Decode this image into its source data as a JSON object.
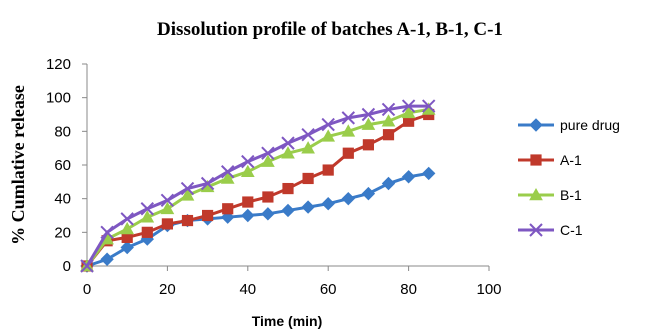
{
  "chart_data": {
    "type": "line",
    "title": "Dissolution profile of batches A-1, B-1, C-1",
    "xlabel": "Time (min)",
    "ylabel": "% Cumlative  release",
    "xlim": [
      0,
      100
    ],
    "ylim": [
      0,
      120
    ],
    "xticks": [
      0,
      20,
      40,
      60,
      80,
      100
    ],
    "yticks": [
      0,
      20,
      40,
      60,
      80,
      100,
      120
    ],
    "grid": false,
    "legend_position": "right",
    "series": [
      {
        "name": "pure drug",
        "color": "#3A7BC8",
        "marker": "diamond",
        "points": [
          [
            0,
            0
          ],
          [
            5,
            4
          ],
          [
            10,
            11
          ],
          [
            15,
            16
          ],
          [
            20,
            24
          ],
          [
            25,
            27
          ],
          [
            30,
            28
          ],
          [
            35,
            29
          ],
          [
            40,
            30
          ],
          [
            45,
            31
          ],
          [
            50,
            33
          ],
          [
            55,
            35
          ],
          [
            60,
            37
          ],
          [
            65,
            40
          ],
          [
            70,
            43
          ],
          [
            75,
            49
          ],
          [
            80,
            53
          ],
          [
            85,
            55
          ]
        ]
      },
      {
        "name": "A-1",
        "color": "#C0392B",
        "marker": "square",
        "points": [
          [
            0,
            0
          ],
          [
            5,
            15
          ],
          [
            10,
            17
          ],
          [
            15,
            20
          ],
          [
            20,
            25
          ],
          [
            25,
            27
          ],
          [
            30,
            30
          ],
          [
            35,
            34
          ],
          [
            40,
            38
          ],
          [
            45,
            41
          ],
          [
            50,
            46
          ],
          [
            55,
            52
          ],
          [
            60,
            57
          ],
          [
            65,
            67
          ],
          [
            70,
            72
          ],
          [
            75,
            78
          ],
          [
            80,
            86
          ],
          [
            85,
            90
          ]
        ]
      },
      {
        "name": "B-1",
        "color": "#9ACD4B",
        "marker": "triangle",
        "points": [
          [
            0,
            0
          ],
          [
            5,
            16
          ],
          [
            10,
            22
          ],
          [
            15,
            29
          ],
          [
            20,
            34
          ],
          [
            25,
            42
          ],
          [
            30,
            47
          ],
          [
            35,
            52
          ],
          [
            40,
            56
          ],
          [
            45,
            62
          ],
          [
            50,
            67
          ],
          [
            55,
            70
          ],
          [
            60,
            77
          ],
          [
            65,
            80
          ],
          [
            70,
            84
          ],
          [
            75,
            86
          ],
          [
            80,
            91
          ],
          [
            85,
            93
          ]
        ]
      },
      {
        "name": "C-1",
        "color": "#7E57C2",
        "marker": "x",
        "points": [
          [
            0,
            0
          ],
          [
            5,
            20
          ],
          [
            10,
            28
          ],
          [
            15,
            34
          ],
          [
            20,
            39
          ],
          [
            25,
            46
          ],
          [
            30,
            49
          ],
          [
            35,
            56
          ],
          [
            40,
            62
          ],
          [
            45,
            67
          ],
          [
            50,
            73
          ],
          [
            55,
            78
          ],
          [
            60,
            84
          ],
          [
            65,
            88
          ],
          [
            70,
            90
          ],
          [
            75,
            93
          ],
          [
            80,
            95
          ],
          [
            85,
            95
          ]
        ]
      }
    ]
  }
}
